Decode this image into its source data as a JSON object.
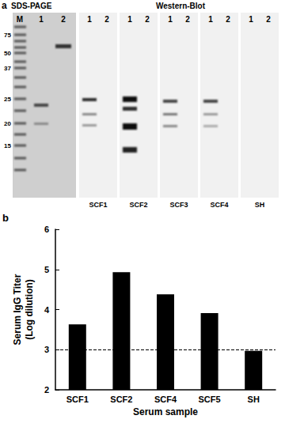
{
  "panel_a": {
    "label": "a",
    "gel_title": "SDS-PAGE",
    "blot_title": "Western-Blot",
    "marker_lane": "M",
    "lanes": [
      "1",
      "2"
    ],
    "marker_kda": [
      75,
      50,
      37,
      25,
      20,
      15
    ],
    "blots": [
      "SCF1",
      "SCF2",
      "SCF3",
      "SCF4",
      "SH"
    ]
  },
  "chart_data": {
    "panel_label": "b",
    "type": "bar",
    "categories": [
      "SCF1",
      "SCF2",
      "SCF4",
      "SCF5",
      "SH"
    ],
    "values": [
      3.63,
      4.93,
      4.38,
      3.91,
      2.97
    ],
    "color": "#000000",
    "ylim": [
      2,
      6
    ],
    "yticks": [
      2,
      3,
      4,
      5,
      6
    ],
    "grid": false,
    "xlabel": "Serum sample",
    "ylabel": "Serum IgG Titer\n(Log dilution)",
    "reference_line": 3
  }
}
